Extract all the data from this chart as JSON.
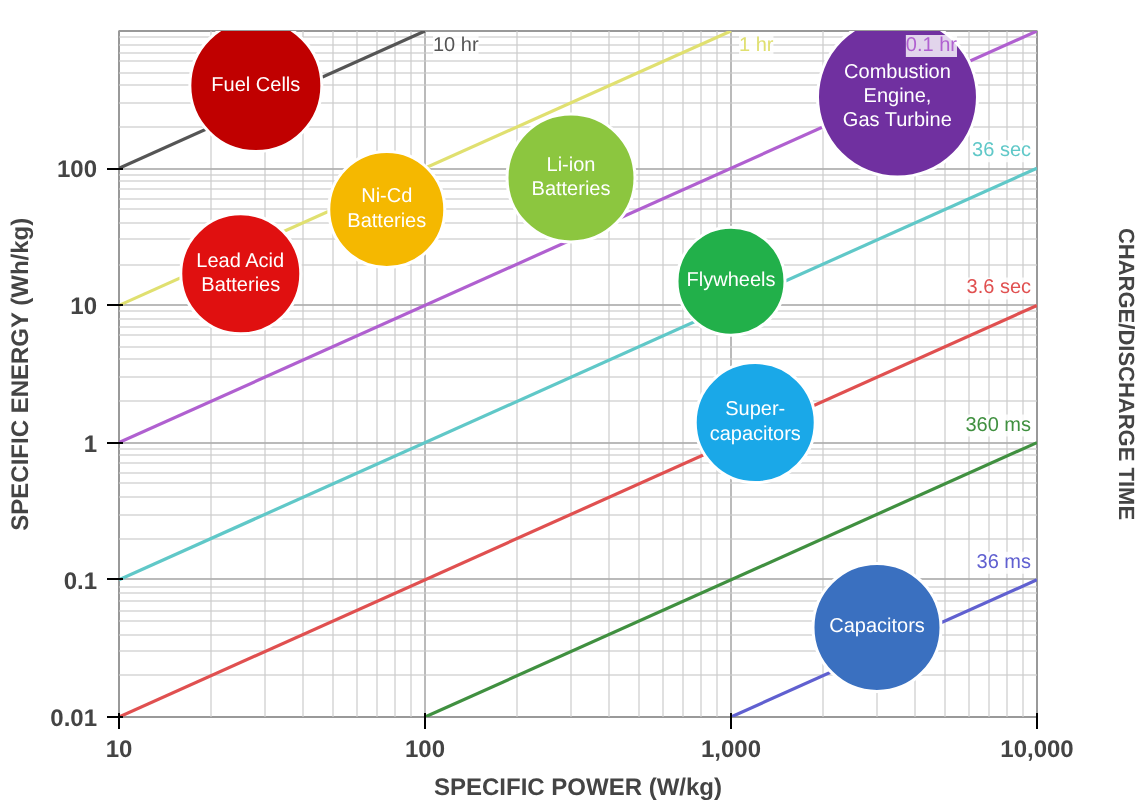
{
  "chart_data": {
    "type": "line",
    "xlabel": "SPECIFIC POWER (W/kg)",
    "ylabel": "SPECIFIC ENERGY (Wh/kg)",
    "y2label": "CHARGE/DISCHARGE TIME",
    "log": "xy",
    "grid": true,
    "legend": false,
    "marker": "none",
    "line_style": "solid",
    "xlim": [
      10,
      10000
    ],
    "ylim": [
      0.01,
      1000
    ],
    "xticks": [
      {
        "value": 10,
        "label": "10"
      },
      {
        "value": 100,
        "label": "100"
      },
      {
        "value": 1000,
        "label": "1,000"
      },
      {
        "value": 10000,
        "label": "10,000"
      }
    ],
    "yticks": [
      0.01,
      0.1,
      1,
      10,
      100
    ],
    "series": [
      {
        "name": "10 hr",
        "color": "#555555",
        "x": [
          10,
          100
        ],
        "values": [
          100,
          1000
        ]
      },
      {
        "name": "1 hr",
        "color": "#e0e070",
        "x": [
          10,
          1000
        ],
        "values": [
          10,
          1000
        ]
      },
      {
        "name": "0.1 hr",
        "color": "#b060d0",
        "x": [
          10,
          10000
        ],
        "values": [
          1,
          1000
        ]
      },
      {
        "name": "36 sec",
        "color": "#60c8c8",
        "x": [
          10,
          10000
        ],
        "values": [
          0.1,
          100
        ]
      },
      {
        "name": "3.6 sec",
        "color": "#e05050",
        "x": [
          10,
          10000
        ],
        "values": [
          0.01,
          10
        ]
      },
      {
        "name": "360 ms",
        "color": "#409040",
        "x": [
          100,
          10000
        ],
        "values": [
          0.01,
          1
        ]
      },
      {
        "name": "36 ms",
        "color": "#6060d0",
        "x": [
          1000,
          10000
        ],
        "values": [
          0.01,
          0.1
        ]
      },
      {
        "type": "scatter",
        "marker": "circle",
        "name": "Fuel Cells",
        "color": "#c00000",
        "x": [
          28
        ],
        "values": [
          400
        ]
      },
      {
        "type": "scatter",
        "marker": "circle",
        "name": "Lead Acid\nBatteries",
        "color": "#e01010",
        "x": [
          25
        ],
        "values": [
          17
        ]
      },
      {
        "type": "scatter",
        "marker": "circle",
        "name": "Ni-Cd\nBatteries",
        "color": "#f5b800",
        "x": [
          75
        ],
        "values": [
          50
        ]
      },
      {
        "type": "scatter",
        "marker": "circle",
        "name": "Li-ion\nBatteries",
        "color": "#8cc63f",
        "x": [
          300
        ],
        "values": [
          85
        ]
      },
      {
        "type": "scatter",
        "marker": "circle",
        "name": "Combustion\nEngine,\nGas Turbine",
        "color": "#7030a0",
        "x": [
          3500
        ],
        "values": [
          330
        ]
      },
      {
        "type": "scatter",
        "marker": "circle",
        "name": "Flywheels",
        "color": "#22b04a",
        "x": [
          1000
        ],
        "values": [
          15
        ]
      },
      {
        "type": "scatter",
        "marker": "circle",
        "name": "Super-\ncapacitors",
        "color": "#1aa8e8",
        "x": [
          1200
        ],
        "values": [
          1.4
        ]
      },
      {
        "type": "scatter",
        "marker": "circle",
        "name": "Capacitors",
        "color": "#3a70c0",
        "x": [
          3000
        ],
        "values": [
          0.045
        ]
      }
    ]
  }
}
